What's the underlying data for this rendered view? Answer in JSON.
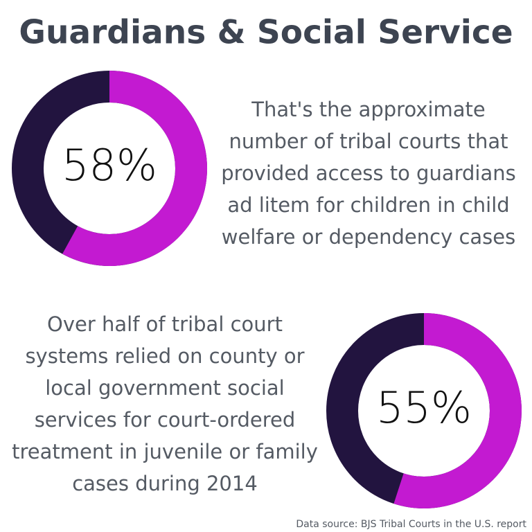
{
  "title": "Guardians & Social Service",
  "source": "Data source: BJS Tribal Courts in the U.S. report",
  "chart_data": [
    {
      "type": "donut",
      "values": [
        58
      ],
      "value_labels": [
        "58%"
      ],
      "color": "#c31ad1",
      "track_color": "#22143f",
      "description": [
        "That's the approximate",
        "number of tribal courts that",
        "provided access to guardians",
        "ad litem for children in child",
        "welfare or dependency cases"
      ]
    },
    {
      "type": "donut",
      "values": [
        55
      ],
      "value_labels": [
        "55%"
      ],
      "color": "#c31ad1",
      "track_color": "#22143f",
      "description": [
        "Over half of tribal court",
        "systems relied on county or",
        "local government social",
        "services for court-ordered",
        "treatment in juvenile or family",
        "cases during 2014"
      ]
    }
  ]
}
